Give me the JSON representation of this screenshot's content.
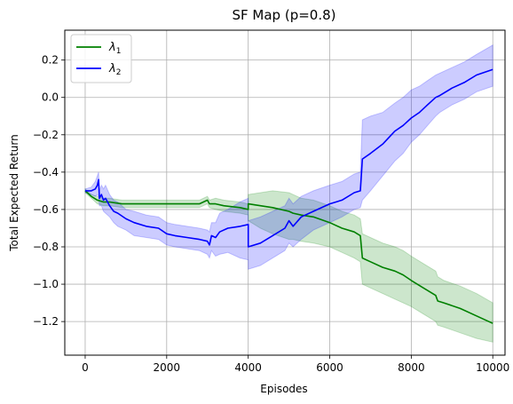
{
  "chart_data": {
    "type": "line",
    "title": "SF Map (p=0.8)",
    "xlabel": "Episodes",
    "ylabel": "Total Expected Return",
    "xlim": [
      -500,
      10300
    ],
    "ylim": [
      -1.38,
      0.36
    ],
    "xticks": [
      0,
      2000,
      4000,
      6000,
      8000,
      10000
    ],
    "xtick_labels": [
      "0",
      "2000",
      "4000",
      "6000",
      "8000",
      "10000"
    ],
    "yticks": [
      0.2,
      0.0,
      -0.2,
      -0.4,
      -0.6,
      -0.8,
      -1.0,
      -1.2
    ],
    "ytick_labels": [
      "0.2",
      "0.0",
      "−0.2",
      "−0.4",
      "−0.6",
      "−0.8",
      "−1.0",
      "−1.2"
    ],
    "grid": true,
    "legend_position": "top-left",
    "series": [
      {
        "name": "λ1",
        "legend_base": "λ",
        "legend_sub": "1",
        "color": "#008000",
        "band_color": "#008000",
        "x": [
          0,
          150,
          300,
          450,
          600,
          900,
          1200,
          1600,
          2000,
          2400,
          2800,
          3000,
          3050,
          3200,
          3400,
          3800,
          4000,
          4000,
          4300,
          4600,
          5000,
          5100,
          5300,
          5600,
          6000,
          6300,
          6600,
          6750,
          6800,
          7000,
          7300,
          7600,
          7800,
          8000,
          8300,
          8600,
          8650,
          8800,
          9200,
          9600,
          10000
        ],
        "y": [
          -0.5,
          -0.53,
          -0.55,
          -0.56,
          -0.56,
          -0.57,
          -0.57,
          -0.57,
          -0.57,
          -0.57,
          -0.57,
          -0.55,
          -0.57,
          -0.57,
          -0.58,
          -0.59,
          -0.6,
          -0.57,
          -0.58,
          -0.59,
          -0.61,
          -0.62,
          -0.63,
          -0.64,
          -0.67,
          -0.7,
          -0.72,
          -0.74,
          -0.86,
          -0.88,
          -0.91,
          -0.93,
          -0.95,
          -0.98,
          -1.02,
          -1.06,
          -1.09,
          -1.1,
          -1.13,
          -1.17,
          -1.21
        ],
        "lower": [
          -0.51,
          -0.54,
          -0.57,
          -0.58,
          -0.58,
          -0.59,
          -0.59,
          -0.59,
          -0.59,
          -0.59,
          -0.59,
          -0.57,
          -0.59,
          -0.6,
          -0.61,
          -0.62,
          -0.63,
          -0.66,
          -0.7,
          -0.73,
          -0.76,
          -0.76,
          -0.77,
          -0.78,
          -0.8,
          -0.83,
          -0.86,
          -0.88,
          -1.0,
          -1.02,
          -1.05,
          -1.08,
          -1.1,
          -1.12,
          -1.16,
          -1.2,
          -1.22,
          -1.23,
          -1.26,
          -1.29,
          -1.31
        ],
        "upper": [
          -0.49,
          -0.52,
          -0.53,
          -0.54,
          -0.54,
          -0.55,
          -0.55,
          -0.55,
          -0.55,
          -0.55,
          -0.55,
          -0.53,
          -0.55,
          -0.54,
          -0.55,
          -0.56,
          -0.57,
          -0.52,
          -0.51,
          -0.5,
          -0.51,
          -0.52,
          -0.54,
          -0.55,
          -0.58,
          -0.61,
          -0.63,
          -0.65,
          -0.73,
          -0.75,
          -0.78,
          -0.8,
          -0.82,
          -0.85,
          -0.89,
          -0.93,
          -0.96,
          -0.98,
          -1.01,
          -1.05,
          -1.1
        ]
      },
      {
        "name": "λ2",
        "legend_base": "λ",
        "legend_sub": "2",
        "color": "#0000ff",
        "band_color": "#0000ff",
        "x": [
          0,
          150,
          250,
          300,
          330,
          350,
          400,
          450,
          500,
          600,
          700,
          800,
          1000,
          1200,
          1500,
          1800,
          2000,
          2200,
          2500,
          2800,
          3000,
          3050,
          3100,
          3200,
          3300,
          3500,
          3800,
          4000,
          4000,
          4300,
          4600,
          4900,
          5000,
          5100,
          5300,
          5600,
          6000,
          6300,
          6600,
          6750,
          6800,
          7000,
          7300,
          7600,
          7800,
          8000,
          8200,
          8400,
          8600,
          8700,
          9000,
          9300,
          9600,
          10000
        ],
        "y": [
          -0.5,
          -0.5,
          -0.49,
          -0.47,
          -0.44,
          -0.54,
          -0.52,
          -0.55,
          -0.54,
          -0.58,
          -0.61,
          -0.62,
          -0.65,
          -0.67,
          -0.69,
          -0.7,
          -0.73,
          -0.74,
          -0.75,
          -0.76,
          -0.77,
          -0.79,
          -0.74,
          -0.75,
          -0.72,
          -0.7,
          -0.69,
          -0.68,
          -0.8,
          -0.78,
          -0.74,
          -0.7,
          -0.66,
          -0.69,
          -0.64,
          -0.61,
          -0.57,
          -0.55,
          -0.51,
          -0.5,
          -0.33,
          -0.3,
          -0.25,
          -0.18,
          -0.15,
          -0.11,
          -0.08,
          -0.04,
          0.0,
          0.01,
          0.05,
          0.08,
          0.12,
          0.15
        ],
        "lower": [
          -0.51,
          -0.52,
          -0.53,
          -0.52,
          -0.53,
          -0.58,
          -0.58,
          -0.61,
          -0.62,
          -0.64,
          -0.67,
          -0.69,
          -0.71,
          -0.74,
          -0.75,
          -0.76,
          -0.79,
          -0.8,
          -0.81,
          -0.82,
          -0.84,
          -0.86,
          -0.82,
          -0.85,
          -0.84,
          -0.83,
          -0.86,
          -0.87,
          -0.92,
          -0.9,
          -0.86,
          -0.82,
          -0.78,
          -0.8,
          -0.76,
          -0.71,
          -0.67,
          -0.64,
          -0.6,
          -0.59,
          -0.55,
          -0.5,
          -0.42,
          -0.34,
          -0.3,
          -0.24,
          -0.2,
          -0.15,
          -0.1,
          -0.08,
          -0.04,
          -0.01,
          0.03,
          0.06
        ],
        "upper": [
          -0.49,
          -0.48,
          -0.45,
          -0.42,
          -0.4,
          -0.5,
          -0.47,
          -0.49,
          -0.47,
          -0.52,
          -0.55,
          -0.56,
          -0.6,
          -0.61,
          -0.63,
          -0.64,
          -0.67,
          -0.68,
          -0.69,
          -0.7,
          -0.71,
          -0.72,
          -0.67,
          -0.67,
          -0.62,
          -0.6,
          -0.56,
          -0.54,
          -0.66,
          -0.64,
          -0.61,
          -0.58,
          -0.54,
          -0.57,
          -0.53,
          -0.5,
          -0.47,
          -0.45,
          -0.41,
          -0.4,
          -0.12,
          -0.1,
          -0.08,
          -0.03,
          0.0,
          0.04,
          0.06,
          0.09,
          0.12,
          0.13,
          0.16,
          0.19,
          0.23,
          0.28
        ]
      }
    ]
  }
}
